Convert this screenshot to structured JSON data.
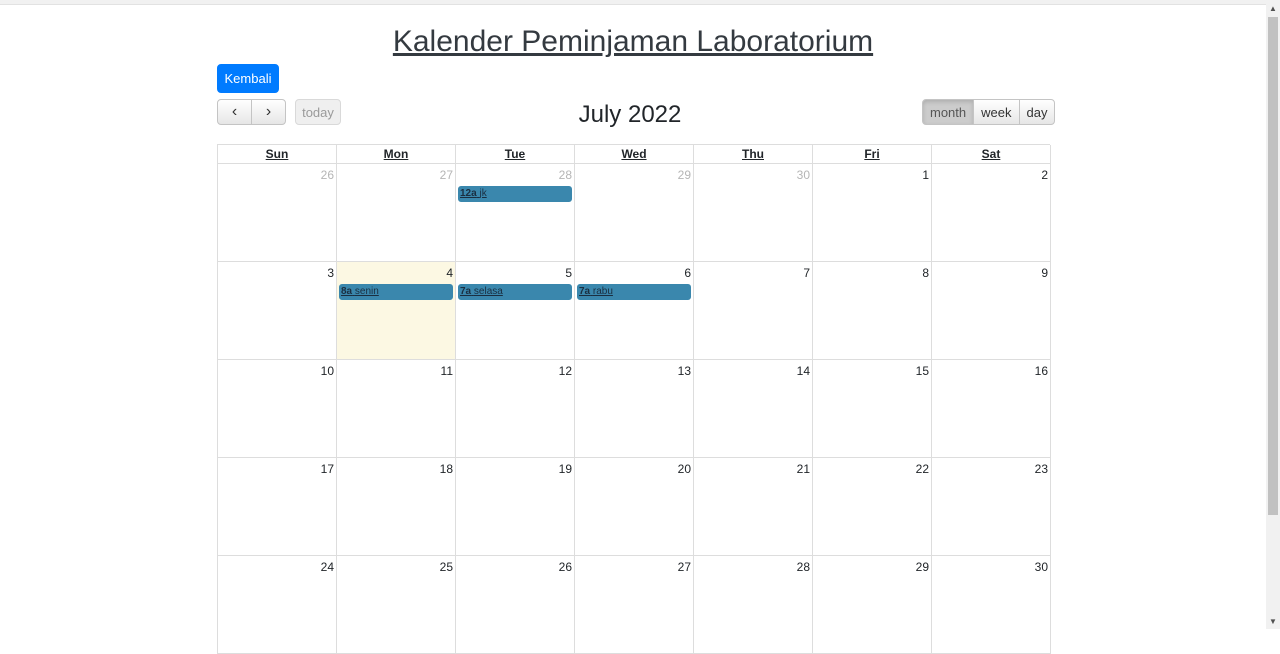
{
  "page": {
    "title": "Kalender Peminjaman Laboratorium",
    "back_label": "Kembali"
  },
  "toolbar": {
    "prev_label": "‹",
    "next_label": "›",
    "today_label": "today",
    "title": "July 2022",
    "views": [
      {
        "label": "month",
        "active": true
      },
      {
        "label": "week",
        "active": false
      },
      {
        "label": "day",
        "active": false
      }
    ]
  },
  "calendar": {
    "day_headers": [
      "Sun",
      "Mon",
      "Tue",
      "Wed",
      "Thu",
      "Fri",
      "Sat"
    ],
    "weeks": [
      [
        {
          "day": "26",
          "other_month": true
        },
        {
          "day": "27",
          "other_month": true
        },
        {
          "day": "28",
          "other_month": true,
          "event": {
            "time": "12a",
            "title": "jk"
          }
        },
        {
          "day": "29",
          "other_month": true
        },
        {
          "day": "30",
          "other_month": true
        },
        {
          "day": "1"
        },
        {
          "day": "2"
        }
      ],
      [
        {
          "day": "3"
        },
        {
          "day": "4",
          "today": true,
          "event": {
            "time": "8a",
            "title": "senin"
          }
        },
        {
          "day": "5",
          "event": {
            "time": "7a",
            "title": "selasa"
          }
        },
        {
          "day": "6",
          "event": {
            "time": "7a",
            "title": "rabu"
          }
        },
        {
          "day": "7"
        },
        {
          "day": "8"
        },
        {
          "day": "9"
        }
      ],
      [
        {
          "day": "10"
        },
        {
          "day": "11"
        },
        {
          "day": "12"
        },
        {
          "day": "13"
        },
        {
          "day": "14"
        },
        {
          "day": "15"
        },
        {
          "day": "16"
        }
      ],
      [
        {
          "day": "17"
        },
        {
          "day": "18"
        },
        {
          "day": "19"
        },
        {
          "day": "20"
        },
        {
          "day": "21"
        },
        {
          "day": "22"
        },
        {
          "day": "23"
        }
      ],
      [
        {
          "day": "24"
        },
        {
          "day": "25"
        },
        {
          "day": "26"
        },
        {
          "day": "27"
        },
        {
          "day": "28"
        },
        {
          "day": "29"
        },
        {
          "day": "30"
        }
      ]
    ]
  },
  "colors": {
    "primary_button": "#007bff",
    "event": "#3a87ad",
    "today_highlight": "#fcf8e3"
  }
}
